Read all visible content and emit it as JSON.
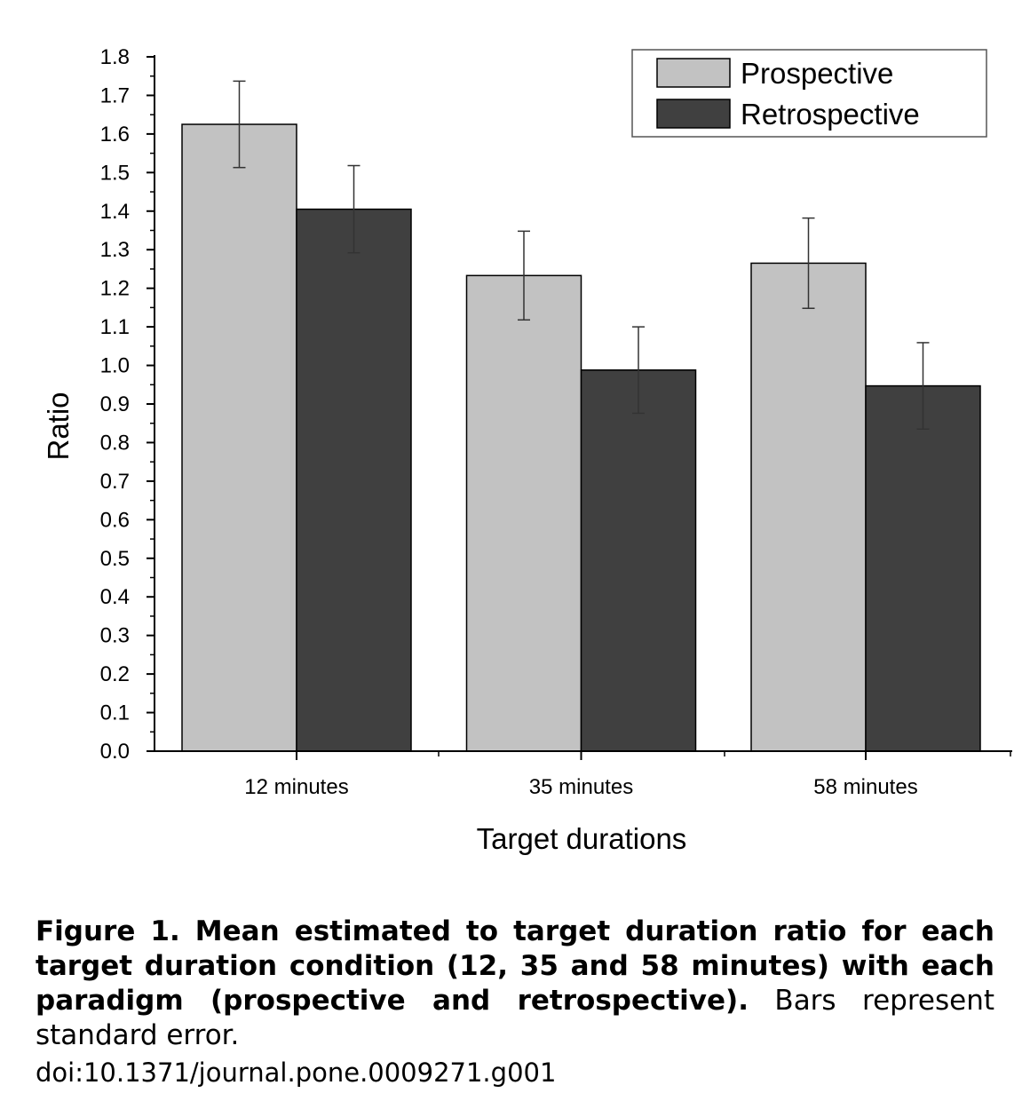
{
  "chart_data": {
    "type": "bar",
    "categories": [
      "12 minutes",
      "35 minutes",
      "58 minutes"
    ],
    "series": [
      {
        "name": "Prospective",
        "color": "#c2c2c2",
        "values": [
          1.625,
          1.233,
          1.265
        ],
        "error": [
          0.112,
          0.115,
          0.117
        ]
      },
      {
        "name": "Retrospective",
        "color": "#404040",
        "values": [
          1.405,
          0.988,
          0.947
        ],
        "error": [
          0.113,
          0.112,
          0.112
        ]
      }
    ],
    "xlabel": "Target durations",
    "ylabel": "Ratio",
    "ylim": [
      0.0,
      1.8
    ],
    "yticks": [
      "0.0",
      "0.1",
      "0.2",
      "0.3",
      "0.4",
      "0.5",
      "0.6",
      "0.7",
      "0.8",
      "0.9",
      "1.0",
      "1.1",
      "1.2",
      "1.3",
      "1.4",
      "1.5",
      "1.6",
      "1.7",
      "1.8"
    ],
    "grid": false,
    "legend_position": "top-right"
  },
  "caption": {
    "lead": "Figure 1. Mean estimated to target duration ratio for each target duration condition (12, 35 and 58 minutes) with each paradigm (prospective and retrospective).",
    "body": " Bars represent standard error."
  },
  "doi": "doi:10.1371/journal.pone.0009271.g001"
}
